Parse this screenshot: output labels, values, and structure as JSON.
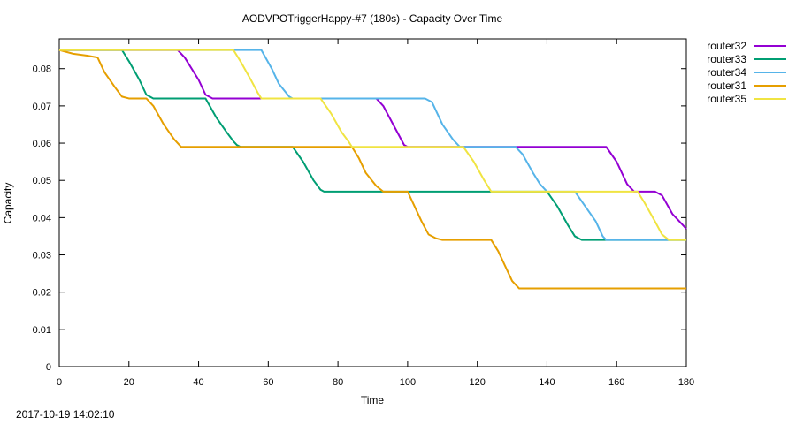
{
  "footer": {
    "timestamp": "2017-10-19 14:02:10"
  },
  "chart_data": {
    "type": "line",
    "title": "AODVPOTriggerHappy-#7 (180s) - Capacity Over Time",
    "xlabel": "Time",
    "ylabel": "Capacity",
    "xlim": [
      0,
      180
    ],
    "ylim": [
      0,
      0.088
    ],
    "xticks": [
      0,
      20,
      40,
      60,
      80,
      100,
      120,
      140,
      160,
      180
    ],
    "yticks": [
      0,
      0.01,
      0.02,
      0.03,
      0.04,
      0.05,
      0.06,
      0.07,
      0.08
    ],
    "grid": false,
    "legend_position": "outside-top-right",
    "series": [
      {
        "name": "router32",
        "color": "#9400d3",
        "points": [
          [
            0,
            0.085
          ],
          [
            34,
            0.085
          ],
          [
            36,
            0.083
          ],
          [
            40,
            0.077
          ],
          [
            42,
            0.073
          ],
          [
            44,
            0.072
          ],
          [
            58,
            0.072
          ],
          [
            91,
            0.072
          ],
          [
            93,
            0.07
          ],
          [
            97,
            0.063
          ],
          [
            99,
            0.0595
          ],
          [
            100,
            0.059
          ],
          [
            157,
            0.059
          ],
          [
            160,
            0.055
          ],
          [
            163,
            0.049
          ],
          [
            165,
            0.047
          ],
          [
            171,
            0.047
          ],
          [
            173,
            0.046
          ],
          [
            176,
            0.041
          ],
          [
            178,
            0.039
          ],
          [
            180,
            0.037
          ]
        ]
      },
      {
        "name": "router33",
        "color": "#009e73",
        "points": [
          [
            0,
            0.085
          ],
          [
            18,
            0.085
          ],
          [
            20,
            0.082
          ],
          [
            23,
            0.077
          ],
          [
            25,
            0.073
          ],
          [
            27,
            0.072
          ],
          [
            42,
            0.072
          ],
          [
            45,
            0.067
          ],
          [
            48,
            0.063
          ],
          [
            50,
            0.0605
          ],
          [
            51,
            0.0595
          ],
          [
            52,
            0.059
          ],
          [
            67,
            0.059
          ],
          [
            70,
            0.055
          ],
          [
            73,
            0.05
          ],
          [
            75,
            0.0475
          ],
          [
            76,
            0.047
          ],
          [
            124,
            0.047
          ],
          [
            140,
            0.047
          ],
          [
            143,
            0.043
          ],
          [
            146,
            0.038
          ],
          [
            148,
            0.035
          ],
          [
            150,
            0.034
          ],
          [
            180,
            0.034
          ]
        ]
      },
      {
        "name": "router34",
        "color": "#56b4e9",
        "points": [
          [
            0,
            0.085
          ],
          [
            56,
            0.085
          ],
          [
            58,
            0.085
          ],
          [
            61,
            0.08
          ],
          [
            63,
            0.076
          ],
          [
            66,
            0.0725
          ],
          [
            67,
            0.072
          ],
          [
            105,
            0.072
          ],
          [
            107,
            0.071
          ],
          [
            110,
            0.065
          ],
          [
            113,
            0.061
          ],
          [
            115,
            0.059
          ],
          [
            131,
            0.059
          ],
          [
            133,
            0.057
          ],
          [
            136,
            0.052
          ],
          [
            138,
            0.049
          ],
          [
            140,
            0.047
          ],
          [
            148,
            0.047
          ],
          [
            151,
            0.043
          ],
          [
            154,
            0.039
          ],
          [
            156,
            0.035
          ],
          [
            157,
            0.034
          ],
          [
            180,
            0.034
          ]
        ]
      },
      {
        "name": "router31",
        "color": "#e69f00",
        "points": [
          [
            0,
            0.085
          ],
          [
            4,
            0.084
          ],
          [
            8,
            0.0835
          ],
          [
            11,
            0.083
          ],
          [
            13,
            0.079
          ],
          [
            16,
            0.075
          ],
          [
            18,
            0.0725
          ],
          [
            20,
            0.072
          ],
          [
            25,
            0.072
          ],
          [
            27,
            0.07
          ],
          [
            30,
            0.065
          ],
          [
            33,
            0.061
          ],
          [
            35,
            0.059
          ],
          [
            84,
            0.059
          ],
          [
            86,
            0.056
          ],
          [
            88,
            0.052
          ],
          [
            91,
            0.0485
          ],
          [
            93,
            0.047
          ],
          [
            100,
            0.047
          ],
          [
            102,
            0.043
          ],
          [
            104,
            0.039
          ],
          [
            106,
            0.0355
          ],
          [
            108,
            0.0345
          ],
          [
            110,
            0.034
          ],
          [
            124,
            0.034
          ],
          [
            126,
            0.031
          ],
          [
            128,
            0.027
          ],
          [
            130,
            0.023
          ],
          [
            132,
            0.021
          ],
          [
            180,
            0.021
          ]
        ]
      },
      {
        "name": "router35",
        "color": "#f0e442",
        "points": [
          [
            0,
            0.085
          ],
          [
            50,
            0.085
          ],
          [
            52,
            0.082
          ],
          [
            55,
            0.077
          ],
          [
            57,
            0.0735
          ],
          [
            58,
            0.072
          ],
          [
            75,
            0.072
          ],
          [
            78,
            0.068
          ],
          [
            81,
            0.063
          ],
          [
            83,
            0.0605
          ],
          [
            84,
            0.059
          ],
          [
            116,
            0.059
          ],
          [
            119,
            0.055
          ],
          [
            122,
            0.05
          ],
          [
            124,
            0.047
          ],
          [
            166,
            0.047
          ],
          [
            168,
            0.044
          ],
          [
            171,
            0.039
          ],
          [
            173,
            0.0355
          ],
          [
            175,
            0.034
          ],
          [
            180,
            0.034
          ]
        ]
      }
    ]
  }
}
